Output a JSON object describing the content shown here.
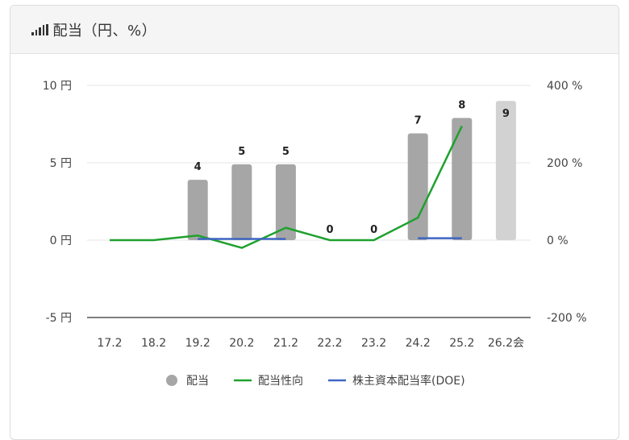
{
  "header": {
    "title": "配当（円、%）",
    "icon": "signal-bars-icon"
  },
  "chart_data": {
    "type": "bar",
    "categories": [
      "17.2",
      "18.2",
      "19.2",
      "20.2",
      "21.2",
      "22.2",
      "23.2",
      "24.2",
      "25.2",
      "26.2会"
    ],
    "left_axis": {
      "unit": "円",
      "ylim": [
        -5,
        10
      ],
      "ticks": [
        10,
        5,
        0,
        -5
      ],
      "tick_labels": [
        "10 円",
        "5 円",
        "0 円",
        "-5 円"
      ]
    },
    "right_axis": {
      "unit": "%",
      "ylim": [
        -200,
        400
      ],
      "ticks": [
        400,
        200,
        0,
        -200
      ],
      "tick_labels": [
        "400 %",
        "200 %",
        "0 %",
        "-200 %"
      ]
    },
    "series": [
      {
        "name": "配当",
        "kind": "bar",
        "axis": "left",
        "values": [
          null,
          null,
          3.9,
          4.9,
          4.9,
          0,
          0,
          6.9,
          7.9,
          9
        ],
        "labels": [
          "",
          "",
          "4",
          "5",
          "5",
          "0",
          "0",
          "7",
          "8",
          "9"
        ],
        "forecast_index": 9,
        "color": "#a6a6a6",
        "forecast_color": "#d2d2d2"
      },
      {
        "name": "配当性向",
        "kind": "line",
        "axis": "right",
        "values": [
          0,
          0,
          12,
          -20,
          32,
          0,
          0,
          58,
          295,
          null
        ],
        "color": "#1fa12e"
      },
      {
        "name": "株主資本配当率(DOE)",
        "kind": "line",
        "axis": "right",
        "values": [
          null,
          null,
          3,
          3,
          3,
          null,
          null,
          5,
          5,
          null
        ],
        "color": "#3f66c4"
      }
    ],
    "grid": true,
    "legend_position": "bottom"
  }
}
